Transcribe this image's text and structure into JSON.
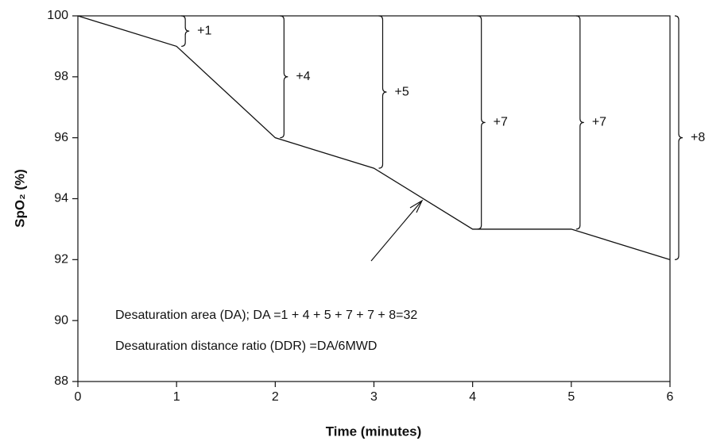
{
  "chart_data": {
    "type": "line",
    "x_label": "Time (minutes)",
    "y_label": "SpO₂ (%)",
    "x": [
      0,
      1,
      2,
      3,
      4,
      5,
      6
    ],
    "series": [
      {
        "color": "#111111",
        "values": [
          100,
          99,
          96,
          95,
          93,
          93,
          92
        ]
      }
    ],
    "brace_values": [
      1,
      4,
      5,
      7,
      7,
      8
    ],
    "brace_labels": [
      "+1",
      "+4",
      "+5",
      "+7",
      "+7",
      "+8"
    ],
    "annotations": [
      "Desaturation area (DA); DA =1 + 4 + 5 + 7 + 7 + 8=32",
      "Desaturation distance ratio (DDR) =DA/6MWD"
    ],
    "xlim": [
      0,
      6
    ],
    "xticks": [
      0,
      1,
      2,
      3,
      4,
      5,
      6
    ],
    "ylim": [
      88,
      100
    ],
    "yticks": [
      88,
      90,
      92,
      94,
      96,
      98,
      100
    ]
  }
}
